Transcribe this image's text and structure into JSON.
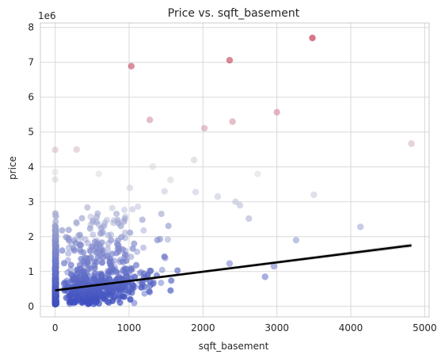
{
  "chart_data": {
    "type": "scatter",
    "title": "Price vs. sqft_basement",
    "xlabel": "sqft_basement",
    "ylabel": "price",
    "y_offset_label": "1e6",
    "xlim": [
      -200,
      5060
    ],
    "ylim": [
      -300000,
      8130000
    ],
    "x_ticks": [
      0,
      1000,
      2000,
      3000,
      4000,
      5000
    ],
    "y_ticks": [
      0,
      1000000,
      2000000,
      3000000,
      4000000,
      5000000,
      6000000,
      7000000,
      8000000
    ],
    "y_tick_labels": [
      "0",
      "1",
      "2",
      "3",
      "4",
      "5",
      "6",
      "7",
      "8"
    ],
    "grid": true,
    "colormap": "coolwarm",
    "color_low": "#3b4cc0",
    "color_mid": "#dddcdc",
    "color_high": "#b40426",
    "regression_line": {
      "x": [
        0,
        4820
      ],
      "y": [
        460000,
        1750000
      ],
      "color": "#000000"
    },
    "points": [
      {
        "x": 3480,
        "y": 7700000
      },
      {
        "x": 2360,
        "y": 7060000
      },
      {
        "x": 1030,
        "y": 6890000
      },
      {
        "x": 3000,
        "y": 5570000
      },
      {
        "x": 1280,
        "y": 5350000
      },
      {
        "x": 2400,
        "y": 5300000
      },
      {
        "x": 2020,
        "y": 5110000
      },
      {
        "x": 0,
        "y": 4490000
      },
      {
        "x": 290,
        "y": 4500000
      },
      {
        "x": 4820,
        "y": 4670000
      },
      {
        "x": 1880,
        "y": 4200000
      },
      {
        "x": 1320,
        "y": 4010000
      },
      {
        "x": 0,
        "y": 3850000
      },
      {
        "x": 590,
        "y": 3800000
      },
      {
        "x": 2740,
        "y": 3800000
      },
      {
        "x": 1560,
        "y": 3630000
      },
      {
        "x": 0,
        "y": 3640000
      },
      {
        "x": 1010,
        "y": 3400000
      },
      {
        "x": 3500,
        "y": 3200000
      },
      {
        "x": 2200,
        "y": 3150000
      },
      {
        "x": 2440,
        "y": 3000000
      },
      {
        "x": 1480,
        "y": 3300000
      },
      {
        "x": 1900,
        "y": 3280000
      },
      {
        "x": 4130,
        "y": 2280000
      },
      {
        "x": 3260,
        "y": 1900000
      },
      {
        "x": 2620,
        "y": 2520000
      },
      {
        "x": 2500,
        "y": 2900000
      },
      {
        "x": 2840,
        "y": 850000
      },
      {
        "x": 2960,
        "y": 1150000
      },
      {
        "x": 2360,
        "y": 1230000
      }
    ]
  }
}
